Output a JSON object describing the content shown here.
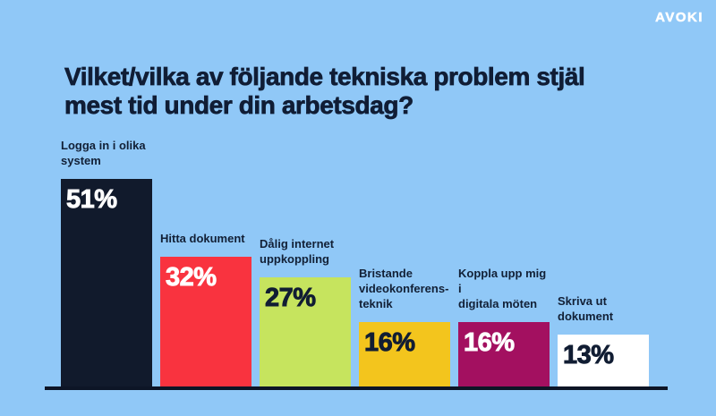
{
  "page": {
    "background_color": "#90c8f7",
    "ink_color": "#101d35"
  },
  "header": {
    "brand": "AVOKI",
    "title_lines": [
      "Vilket/vilka av följande tekniska problem stjäl",
      "mest tid under din arbetsdag?"
    ]
  },
  "chart_data": {
    "type": "bar",
    "title": "Vilket/vilka av följande tekniska problem stjäl mest tid under din arbetsdag?",
    "xlabel": "",
    "ylabel": "",
    "unit": "%",
    "ylim": [
      0,
      55
    ],
    "grid": false,
    "legend": false,
    "axis_line_color": "#0d1526",
    "categories": [
      "Logga in i olika system",
      "Hitta dokument",
      "Dålig internet uppkoppling",
      "Bristande videokonferens-teknik",
      "Koppla upp mig i digitala möten",
      "Skriva ut dokument"
    ],
    "values": [
      51,
      32,
      27,
      16,
      16,
      13
    ],
    "bars": [
      {
        "label_lines": [
          "Logga in i olika",
          "system"
        ],
        "value": 51,
        "value_label": "51%",
        "color": "#111a2c",
        "value_color": "#ffffff"
      },
      {
        "label_lines": [
          "Hitta dokument"
        ],
        "value": 32,
        "value_label": "32%",
        "color": "#f9333f",
        "value_color": "#ffffff"
      },
      {
        "label_lines": [
          "Dålig internet",
          "uppkoppling"
        ],
        "value": 27,
        "value_label": "27%",
        "color": "#c6e45e",
        "value_color": "#111d33"
      },
      {
        "label_lines": [
          "Bristande",
          "videokonferens-",
          "teknik"
        ],
        "value": 16,
        "value_label": "16%",
        "color": "#f3c51d",
        "value_color": "#111d33"
      },
      {
        "label_lines": [
          "Koppla upp mig i",
          "digitala möten"
        ],
        "value": 16,
        "value_label": "16%",
        "color": "#a31060",
        "value_color": "#ffffff"
      },
      {
        "label_lines": [
          "Skriva ut",
          "dokument"
        ],
        "value": 13,
        "value_label": "13%",
        "color": "#ffffff",
        "value_color": "#111d33"
      }
    ]
  }
}
